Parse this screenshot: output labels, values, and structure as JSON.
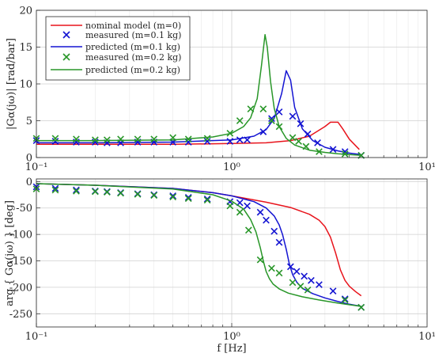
{
  "chart_data": [
    {
      "type": "line",
      "panel": "magnitude",
      "ylabel": "|Gα(jω)| [rad/bar]",
      "xlabel": "",
      "xscale": "log",
      "xlim": [
        0.1,
        10
      ],
      "ylim": [
        0,
        20
      ],
      "yticks": [
        0,
        5,
        10,
        15,
        20
      ],
      "ytick_labels": [
        "0",
        "5",
        "10",
        "15",
        "20"
      ],
      "xtick_labels": [
        "10⁻¹",
        "10⁰",
        "10¹"
      ],
      "grid": true,
      "legend": "top-left",
      "series": [
        {
          "name": "nominal model (m=0)",
          "style": "line",
          "color": "#e8141c",
          "x": [
            0.1,
            0.2,
            0.5,
            1.0,
            1.5,
            2.0,
            2.5,
            3.0,
            3.2,
            3.5,
            3.7,
            4.0,
            4.5
          ],
          "y": [
            1.8,
            1.8,
            1.8,
            1.9,
            2.0,
            2.3,
            2.9,
            4.2,
            4.8,
            4.8,
            3.9,
            2.5,
            1.1
          ]
        },
        {
          "name": "measured (m=0.1 kg)",
          "style": "marker-x",
          "color": "#1414d2",
          "x": [
            0.1,
            0.125,
            0.16,
            0.2,
            0.23,
            0.27,
            0.33,
            0.4,
            0.5,
            0.6,
            0.75,
            0.98,
            1.1,
            1.2,
            1.45,
            1.6,
            1.75,
            2.05,
            2.25,
            2.45,
            2.75,
            3.3,
            3.8,
            4.6
          ],
          "y": [
            2.3,
            2.2,
            2.1,
            2.1,
            2.0,
            2.0,
            2.1,
            2.1,
            2.1,
            2.1,
            2.2,
            2.2,
            2.4,
            2.4,
            3.5,
            5.3,
            6.2,
            5.6,
            4.6,
            3.2,
            2.0,
            1.1,
            0.8,
            0.3
          ]
        },
        {
          "name": "predicted (m=0.1 kg)",
          "style": "line",
          "color": "#1414d2",
          "x": [
            0.1,
            0.2,
            0.5,
            1.0,
            1.3,
            1.5,
            1.65,
            1.8,
            1.9,
            2.0,
            2.1,
            2.3,
            2.6,
            3.0,
            3.5,
            4.0,
            4.6
          ],
          "y": [
            2.0,
            2.0,
            2.1,
            2.4,
            2.9,
            3.8,
            5.3,
            8.7,
            11.8,
            10.5,
            6.8,
            3.9,
            2.3,
            1.4,
            0.9,
            0.6,
            0.4
          ]
        },
        {
          "name": "measured (m=0.2 kg)",
          "style": "marker-x",
          "color": "#289628",
          "x": [
            0.1,
            0.125,
            0.16,
            0.2,
            0.23,
            0.27,
            0.33,
            0.4,
            0.5,
            0.6,
            0.75,
            0.98,
            1.1,
            1.25,
            1.45,
            1.6,
            1.75,
            2.05,
            2.2,
            2.4,
            2.8,
            3.8,
            4.6
          ],
          "y": [
            2.6,
            2.6,
            2.5,
            2.4,
            2.4,
            2.5,
            2.5,
            2.5,
            2.7,
            2.5,
            2.6,
            3.3,
            5.0,
            6.6,
            6.6,
            5.0,
            4.2,
            2.7,
            2.2,
            1.5,
            0.8,
            0.5,
            0.3
          ]
        },
        {
          "name": "predicted (m=0.2 kg)",
          "style": "line",
          "color": "#289628",
          "x": [
            0.1,
            0.2,
            0.5,
            0.8,
            1.0,
            1.15,
            1.25,
            1.35,
            1.42,
            1.48,
            1.52,
            1.58,
            1.65,
            1.75,
            1.9,
            2.1,
            2.5,
            3.0,
            3.5,
            4.0,
            4.6
          ],
          "y": [
            2.3,
            2.3,
            2.4,
            2.8,
            3.3,
            4.2,
            5.4,
            8.0,
            12.5,
            16.7,
            15.0,
            10.3,
            6.7,
            4.2,
            2.6,
            1.7,
            1.0,
            0.7,
            0.5,
            0.4,
            0.3
          ]
        }
      ]
    },
    {
      "type": "line",
      "panel": "phase",
      "ylabel": "arg { Gα(jω) } [deg]",
      "xlabel": "f [Hz]",
      "xscale": "log",
      "xlim": [
        0.1,
        10
      ],
      "ylim": [
        -275,
        5
      ],
      "yticks": [
        0,
        -50,
        -100,
        -150,
        -200,
        -250
      ],
      "ytick_labels": [
        "0",
        "-50",
        "-100",
        "-150",
        "-200",
        "-250"
      ],
      "xtick_labels": [
        "10⁻¹",
        "10⁰",
        "10¹"
      ],
      "grid": true,
      "series": [
        {
          "name": "nominal model (m=0)",
          "style": "line",
          "color": "#e8141c",
          "x": [
            0.1,
            0.2,
            0.5,
            0.8,
            1.0,
            1.5,
            2.0,
            2.5,
            2.8,
            3.0,
            3.2,
            3.4,
            3.6,
            3.8,
            4.0,
            4.3,
            4.6
          ],
          "y": [
            -4,
            -7,
            -13,
            -21,
            -27,
            -39,
            -49,
            -62,
            -73,
            -85,
            -105,
            -135,
            -167,
            -187,
            -198,
            -208,
            -216
          ]
        },
        {
          "name": "measured (m=0.1 kg)",
          "style": "marker-x",
          "color": "#1414d2",
          "x": [
            0.1,
            0.125,
            0.16,
            0.2,
            0.23,
            0.27,
            0.33,
            0.4,
            0.5,
            0.6,
            0.75,
            0.98,
            1.1,
            1.2,
            1.4,
            1.5,
            1.65,
            1.75,
            2.0,
            2.15,
            2.35,
            2.55,
            2.8,
            3.3,
            3.8,
            4.6
          ],
          "y": [
            -10,
            -13,
            -16,
            -18,
            -19,
            -21,
            -23,
            -25,
            -27,
            -30,
            -33,
            -38,
            -40,
            -46,
            -58,
            -73,
            -94,
            -115,
            -161,
            -170,
            -179,
            -187,
            -195,
            -207,
            -222,
            -238
          ]
        },
        {
          "name": "predicted (m=0.1 kg)",
          "style": "line",
          "color": "#1414d2",
          "x": [
            0.1,
            0.2,
            0.5,
            0.8,
            1.0,
            1.3,
            1.5,
            1.65,
            1.75,
            1.82,
            1.9,
            1.97,
            2.05,
            2.15,
            2.3,
            2.6,
            3.0,
            3.5,
            4.0,
            4.6
          ],
          "y": [
            -4,
            -7,
            -13,
            -21,
            -27,
            -38,
            -50,
            -65,
            -82,
            -100,
            -128,
            -155,
            -176,
            -190,
            -202,
            -212,
            -220,
            -227,
            -232,
            -236
          ]
        },
        {
          "name": "measured (m=0.2 kg)",
          "style": "marker-x",
          "color": "#289628",
          "x": [
            0.1,
            0.125,
            0.16,
            0.2,
            0.23,
            0.27,
            0.33,
            0.4,
            0.5,
            0.6,
            0.75,
            0.98,
            1.1,
            1.22,
            1.4,
            1.6,
            1.75,
            2.05,
            2.25,
            2.45,
            3.8,
            4.6
          ],
          "y": [
            -14,
            -16,
            -18,
            -19,
            -20,
            -22,
            -24,
            -26,
            -29,
            -32,
            -35,
            -46,
            -58,
            -92,
            -148,
            -164,
            -173,
            -191,
            -198,
            -205,
            -224,
            -238
          ]
        },
        {
          "name": "predicted (m=0.2 kg)",
          "style": "line",
          "color": "#289628",
          "x": [
            0.1,
            0.2,
            0.5,
            0.8,
            1.0,
            1.15,
            1.25,
            1.33,
            1.4,
            1.45,
            1.5,
            1.56,
            1.63,
            1.75,
            1.95,
            2.3,
            2.8,
            3.5,
            4.6
          ],
          "y": [
            -4,
            -7,
            -14,
            -25,
            -37,
            -52,
            -72,
            -95,
            -125,
            -150,
            -170,
            -184,
            -194,
            -203,
            -211,
            -218,
            -224,
            -230,
            -236
          ]
        }
      ]
    }
  ]
}
